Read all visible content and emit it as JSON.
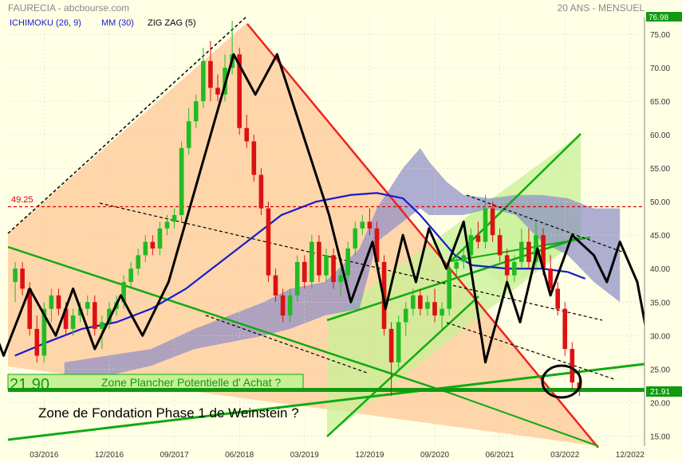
{
  "header": {
    "title": "FAURECIA - abcbourse.com",
    "period": "20 ANS - MENSUEL"
  },
  "legend": [
    {
      "label": "ICHIMOKU (26, 9)",
      "color": "#1a1acc"
    },
    {
      "label": "MM (30)",
      "color": "#1a1acc"
    },
    {
      "label": "ZIG ZAG (5)",
      "color": "#000000"
    }
  ],
  "colors": {
    "background": "#ffffe6",
    "up": "#22bb22",
    "down": "#dd1111",
    "cloud": "#8c8cc8",
    "ma": "#1a1acc",
    "zigzag": "#000000",
    "resistance_line": "#ee2222",
    "channel": "#11aa11",
    "triangle_fill": "#ffc896",
    "channel_fill": "#c8f096",
    "level_line": "#dd0000",
    "support_line": "#119911"
  },
  "annotations": {
    "level_label": "49.25",
    "zone_value": "21.90",
    "zone_text": "Zone Plancher Potentielle d' Achat ?",
    "foundation_text": "Zone de Fondation Phase 1 de Weinstein ?",
    "last_price": "21.91",
    "top_price": "76.98"
  },
  "chart_data": {
    "type": "candlestick",
    "title": "FAURECIA - abcbourse.com",
    "subtitle": "20 ANS - MENSUEL",
    "x_start": "2015-10",
    "x_end": "2023-02",
    "x_ticks": [
      "03/2016",
      "12/2016",
      "09/2017",
      "06/2018",
      "03/2019",
      "12/2019",
      "09/2020",
      "06/2021",
      "03/2022",
      "12/2022"
    ],
    "ylim": [
      13.5,
      77.5
    ],
    "y_ticks": [
      15,
      20,
      25,
      30,
      35,
      40,
      45,
      50,
      55,
      60,
      65,
      70,
      75
    ],
    "last_price": 21.91,
    "top_price_label": 76.98,
    "level_line": 49.25,
    "zone_value": 21.9,
    "candles": [
      {
        "d": "2015-11",
        "o": 38,
        "h": 41,
        "l": 35,
        "c": 40
      },
      {
        "d": "2015-12",
        "o": 40,
        "h": 41,
        "l": 36,
        "c": 37
      },
      {
        "d": "2016-01",
        "o": 37,
        "h": 38,
        "l": 30,
        "c": 31
      },
      {
        "d": "2016-02",
        "o": 31,
        "h": 33,
        "l": 26,
        "c": 27
      },
      {
        "d": "2016-03",
        "o": 27,
        "h": 35,
        "l": 26,
        "c": 34
      },
      {
        "d": "2016-04",
        "o": 34,
        "h": 37,
        "l": 32,
        "c": 36
      },
      {
        "d": "2016-05",
        "o": 36,
        "h": 37,
        "l": 33,
        "c": 34
      },
      {
        "d": "2016-06",
        "o": 34,
        "h": 35,
        "l": 30,
        "c": 31
      },
      {
        "d": "2016-07",
        "o": 31,
        "h": 34,
        "l": 30,
        "c": 33
      },
      {
        "d": "2016-08",
        "o": 33,
        "h": 35,
        "l": 32,
        "c": 34
      },
      {
        "d": "2016-09",
        "o": 34,
        "h": 36,
        "l": 33,
        "c": 35
      },
      {
        "d": "2016-10",
        "o": 35,
        "h": 36,
        "l": 30,
        "c": 31
      },
      {
        "d": "2016-11",
        "o": 31,
        "h": 33,
        "l": 28,
        "c": 32
      },
      {
        "d": "2016-12",
        "o": 32,
        "h": 35,
        "l": 31,
        "c": 34
      },
      {
        "d": "2017-01",
        "o": 34,
        "h": 36,
        "l": 33,
        "c": 35
      },
      {
        "d": "2017-02",
        "o": 35,
        "h": 39,
        "l": 34,
        "c": 38
      },
      {
        "d": "2017-03",
        "o": 38,
        "h": 41,
        "l": 37,
        "c": 40
      },
      {
        "d": "2017-04",
        "o": 40,
        "h": 43,
        "l": 39,
        "c": 42
      },
      {
        "d": "2017-05",
        "o": 42,
        "h": 45,
        "l": 41,
        "c": 44
      },
      {
        "d": "2017-06",
        "o": 44,
        "h": 45,
        "l": 42,
        "c": 43
      },
      {
        "d": "2017-07",
        "o": 43,
        "h": 47,
        "l": 42,
        "c": 46
      },
      {
        "d": "2017-08",
        "o": 46,
        "h": 48,
        "l": 45,
        "c": 47
      },
      {
        "d": "2017-09",
        "o": 47,
        "h": 49,
        "l": 46,
        "c": 48
      },
      {
        "d": "2017-10",
        "o": 48,
        "h": 59,
        "l": 47,
        "c": 58
      },
      {
        "d": "2017-11",
        "o": 58,
        "h": 64,
        "l": 57,
        "c": 62
      },
      {
        "d": "2017-12",
        "o": 62,
        "h": 66,
        "l": 61,
        "c": 65
      },
      {
        "d": "2018-01",
        "o": 65,
        "h": 73,
        "l": 64,
        "c": 71
      },
      {
        "d": "2018-02",
        "o": 71,
        "h": 74,
        "l": 65,
        "c": 67
      },
      {
        "d": "2018-03",
        "o": 67,
        "h": 69,
        "l": 65,
        "c": 66
      },
      {
        "d": "2018-04",
        "o": 66,
        "h": 72,
        "l": 65,
        "c": 70
      },
      {
        "d": "2018-05",
        "o": 70,
        "h": 77,
        "l": 69,
        "c": 72
      },
      {
        "d": "2018-06",
        "o": 72,
        "h": 73,
        "l": 60,
        "c": 61
      },
      {
        "d": "2018-07",
        "o": 61,
        "h": 63,
        "l": 58,
        "c": 59
      },
      {
        "d": "2018-08",
        "o": 59,
        "h": 60,
        "l": 53,
        "c": 54
      },
      {
        "d": "2018-09",
        "o": 54,
        "h": 55,
        "l": 48,
        "c": 49
      },
      {
        "d": "2018-10",
        "o": 49,
        "h": 50,
        "l": 38,
        "c": 39
      },
      {
        "d": "2018-11",
        "o": 39,
        "h": 40,
        "l": 35,
        "c": 36
      },
      {
        "d": "2018-12",
        "o": 36,
        "h": 37,
        "l": 32,
        "c": 33
      },
      {
        "d": "2019-01",
        "o": 33,
        "h": 37,
        "l": 32,
        "c": 36
      },
      {
        "d": "2019-02",
        "o": 36,
        "h": 42,
        "l": 35,
        "c": 41
      },
      {
        "d": "2019-03",
        "o": 41,
        "h": 42,
        "l": 37,
        "c": 38
      },
      {
        "d": "2019-04",
        "o": 38,
        "h": 45,
        "l": 37,
        "c": 44
      },
      {
        "d": "2019-05",
        "o": 44,
        "h": 45,
        "l": 38,
        "c": 39
      },
      {
        "d": "2019-06",
        "o": 39,
        "h": 43,
        "l": 38,
        "c": 42
      },
      {
        "d": "2019-07",
        "o": 42,
        "h": 43,
        "l": 37,
        "c": 38
      },
      {
        "d": "2019-08",
        "o": 38,
        "h": 40,
        "l": 36,
        "c": 39
      },
      {
        "d": "2019-09",
        "o": 39,
        "h": 44,
        "l": 38,
        "c": 43
      },
      {
        "d": "2019-10",
        "o": 43,
        "h": 47,
        "l": 42,
        "c": 46
      },
      {
        "d": "2019-11",
        "o": 46,
        "h": 48,
        "l": 45,
        "c": 47
      },
      {
        "d": "2019-12",
        "o": 47,
        "h": 49,
        "l": 45,
        "c": 46
      },
      {
        "d": "2020-01",
        "o": 46,
        "h": 47,
        "l": 40,
        "c": 41
      },
      {
        "d": "2020-02",
        "o": 41,
        "h": 42,
        "l": 30,
        "c": 31
      },
      {
        "d": "2020-03",
        "o": 31,
        "h": 32,
        "l": 21,
        "c": 26
      },
      {
        "d": "2020-04",
        "o": 26,
        "h": 33,
        "l": 25,
        "c": 32
      },
      {
        "d": "2020-05",
        "o": 32,
        "h": 35,
        "l": 30,
        "c": 34
      },
      {
        "d": "2020-06",
        "o": 34,
        "h": 37,
        "l": 33,
        "c": 36
      },
      {
        "d": "2020-07",
        "o": 36,
        "h": 37,
        "l": 33,
        "c": 34
      },
      {
        "d": "2020-08",
        "o": 34,
        "h": 36,
        "l": 33,
        "c": 35
      },
      {
        "d": "2020-09",
        "o": 35,
        "h": 37,
        "l": 32,
        "c": 33
      },
      {
        "d": "2020-10",
        "o": 33,
        "h": 35,
        "l": 31,
        "c": 34
      },
      {
        "d": "2020-11",
        "o": 34,
        "h": 41,
        "l": 33,
        "c": 40
      },
      {
        "d": "2020-12",
        "o": 40,
        "h": 42,
        "l": 39,
        "c": 41
      },
      {
        "d": "2021-01",
        "o": 41,
        "h": 43,
        "l": 40,
        "c": 42
      },
      {
        "d": "2021-02",
        "o": 42,
        "h": 46,
        "l": 41,
        "c": 45
      },
      {
        "d": "2021-03",
        "o": 45,
        "h": 47,
        "l": 43,
        "c": 44
      },
      {
        "d": "2021-04",
        "o": 44,
        "h": 51,
        "l": 43,
        "c": 49
      },
      {
        "d": "2021-05",
        "o": 49,
        "h": 50,
        "l": 44,
        "c": 45
      },
      {
        "d": "2021-06",
        "o": 45,
        "h": 46,
        "l": 41,
        "c": 42
      },
      {
        "d": "2021-07",
        "o": 42,
        "h": 43,
        "l": 38,
        "c": 39
      },
      {
        "d": "2021-08",
        "o": 39,
        "h": 42,
        "l": 38,
        "c": 41
      },
      {
        "d": "2021-09",
        "o": 41,
        "h": 46,
        "l": 40,
        "c": 44
      },
      {
        "d": "2021-10",
        "o": 44,
        "h": 46,
        "l": 40,
        "c": 41
      },
      {
        "d": "2021-11",
        "o": 41,
        "h": 47,
        "l": 40,
        "c": 45
      },
      {
        "d": "2021-12",
        "o": 45,
        "h": 46,
        "l": 39,
        "c": 40
      },
      {
        "d": "2022-01",
        "o": 40,
        "h": 42,
        "l": 36,
        "c": 37
      },
      {
        "d": "2022-02",
        "o": 37,
        "h": 38,
        "l": 33,
        "c": 34
      },
      {
        "d": "2022-03",
        "o": 34,
        "h": 35,
        "l": 27,
        "c": 28
      },
      {
        "d": "2022-04",
        "o": 28,
        "h": 29,
        "l": 22,
        "c": 23
      },
      {
        "d": "2022-05",
        "o": 23,
        "h": 25,
        "l": 21,
        "c": 22
      }
    ],
    "ma30": [
      [
        2015.83,
        27
      ],
      [
        2016.2,
        29
      ],
      [
        2016.6,
        31
      ],
      [
        2017.0,
        32
      ],
      [
        2017.4,
        34
      ],
      [
        2017.8,
        37
      ],
      [
        2018.2,
        41
      ],
      [
        2018.6,
        45
      ],
      [
        2018.9,
        48
      ],
      [
        2019.3,
        50
      ],
      [
        2019.7,
        51
      ],
      [
        2020.0,
        51.3
      ],
      [
        2020.3,
        50.5
      ],
      [
        2020.5,
        48
      ],
      [
        2020.7,
        45
      ],
      [
        2020.9,
        42
      ],
      [
        2021.1,
        40.5
      ],
      [
        2021.5,
        40
      ],
      [
        2021.9,
        40
      ],
      [
        2022.2,
        39.5
      ],
      [
        2022.4,
        38.5
      ]
    ],
    "cloud_top": [
      [
        2016.4,
        26
      ],
      [
        2016.9,
        27
      ],
      [
        2017.4,
        28
      ],
      [
        2017.9,
        31
      ],
      [
        2018.3,
        33
      ],
      [
        2018.7,
        35
      ],
      [
        2019.0,
        37
      ],
      [
        2019.4,
        38
      ],
      [
        2019.8,
        43
      ],
      [
        2020.0,
        49
      ],
      [
        2020.3,
        55
      ],
      [
        2020.5,
        58
      ],
      [
        2020.6,
        56
      ],
      [
        2020.8,
        53
      ],
      [
        2021.0,
        51
      ],
      [
        2021.3,
        50.5
      ],
      [
        2021.6,
        51
      ],
      [
        2021.9,
        51
      ],
      [
        2022.2,
        50.5
      ],
      [
        2022.5,
        49
      ],
      [
        2022.8,
        49
      ]
    ],
    "cloud_bottom": [
      [
        2016.4,
        23
      ],
      [
        2016.9,
        24
      ],
      [
        2017.4,
        25.5
      ],
      [
        2017.9,
        28
      ],
      [
        2018.3,
        29
      ],
      [
        2018.7,
        30
      ],
      [
        2019.0,
        31
      ],
      [
        2019.4,
        33
      ],
      [
        2019.8,
        34
      ],
      [
        2020.0,
        44
      ],
      [
        2020.3,
        47
      ],
      [
        2020.5,
        49
      ],
      [
        2020.6,
        48
      ],
      [
        2020.8,
        48
      ],
      [
        2021.0,
        48
      ],
      [
        2021.3,
        49
      ],
      [
        2021.6,
        48
      ],
      [
        2021.9,
        44
      ],
      [
        2022.2,
        42
      ],
      [
        2022.5,
        38
      ],
      [
        2022.8,
        35
      ]
    ],
    "zigzag": [
      [
        2015.83,
        38
      ],
      [
        2016.15,
        27
      ],
      [
        2016.45,
        37
      ],
      [
        2016.75,
        30
      ],
      [
        2016.95,
        37
      ],
      [
        2017.2,
        28
      ],
      [
        2017.5,
        36
      ],
      [
        2017.75,
        30
      ],
      [
        2018.05,
        38
      ],
      [
        2018.8,
        72
      ],
      [
        2019.05,
        66
      ],
      [
        2019.3,
        72
      ],
      [
        2019.55,
        62
      ],
      [
        2019.9,
        48
      ],
      [
        2020.15,
        35
      ],
      [
        2020.4,
        44
      ],
      [
        2020.55,
        34
      ],
      [
        2020.75,
        45
      ],
      [
        2020.9,
        38
      ],
      [
        2021.05,
        46
      ],
      [
        2021.25,
        40
      ],
      [
        2021.45,
        47
      ],
      [
        2021.7,
        26
      ],
      [
        2021.95,
        38
      ],
      [
        2022.1,
        32
      ],
      [
        2022.3,
        43
      ],
      [
        2022.45,
        36
      ],
      [
        2022.7,
        45
      ],
      [
        2022.95,
        42
      ],
      [
        2023.1,
        38
      ],
      [
        2023.25,
        44
      ],
      [
        2023.45,
        38
      ],
      [
        2023.65,
        24
      ]
    ]
  }
}
